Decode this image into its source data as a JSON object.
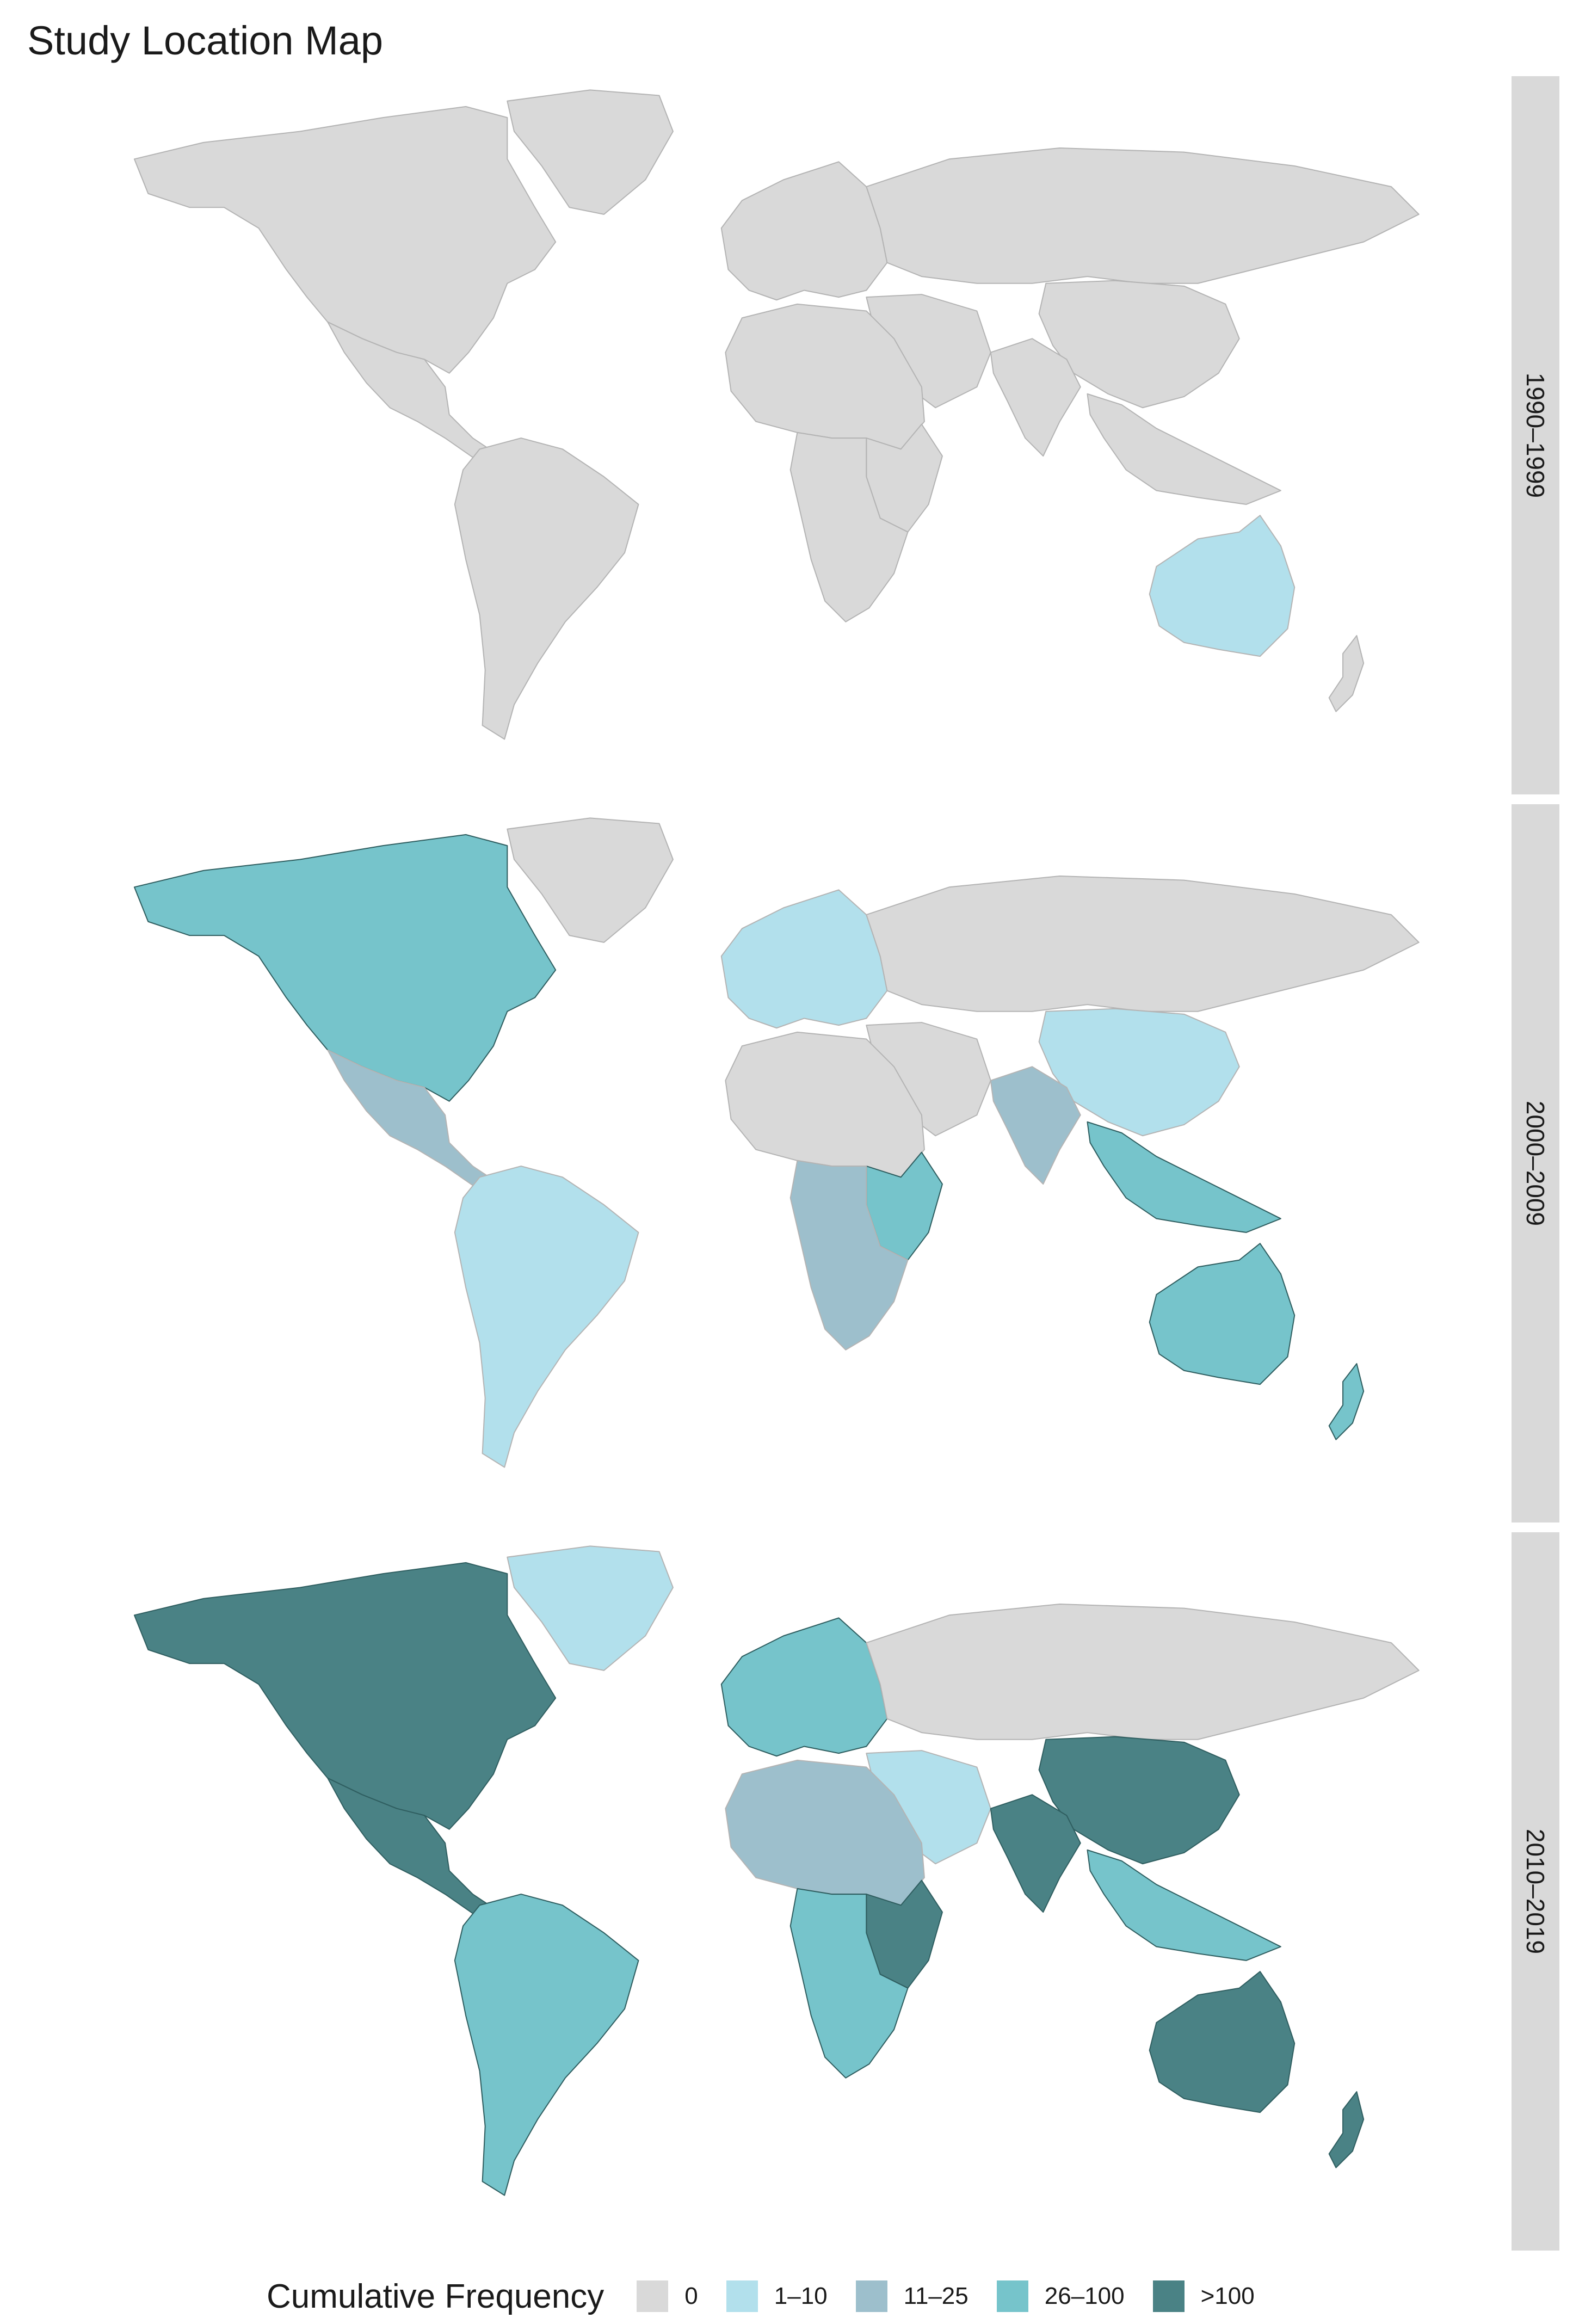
{
  "title": "Study Location Map",
  "legend": {
    "title": "Cumulative Frequency",
    "items": [
      {
        "label": "0",
        "color": "#d9d9d9"
      },
      {
        "label": "1–10",
        "color": "#b2e0ec"
      },
      {
        "label": "11–25",
        "color": "#9dbfcc"
      },
      {
        "label": "26–100",
        "color": "#76c4cb"
      },
      {
        "label": ">100",
        "color": "#4a8285"
      }
    ]
  },
  "panels": [
    {
      "label": "1990–1999",
      "regions": {
        "north-america": 0,
        "greenland": 0,
        "south-america": 0,
        "mexico": 0,
        "europe": 0,
        "africa": 0,
        "east-africa": 0,
        "southern-africa": 0,
        "russia": 0,
        "china": 0,
        "india": 0,
        "southeast-asia": 0,
        "australia": 1,
        "new-zealand": 0,
        "middle-east": 0
      }
    },
    {
      "label": "2000–2009",
      "regions": {
        "north-america": 3,
        "greenland": 0,
        "south-america": 1,
        "mexico": 2,
        "europe": 1,
        "africa": 0,
        "east-africa": 3,
        "southern-africa": 2,
        "russia": 0,
        "china": 1,
        "india": 2,
        "southeast-asia": 3,
        "australia": 3,
        "new-zealand": 3,
        "middle-east": 0
      }
    },
    {
      "label": "2010–2019",
      "regions": {
        "north-america": 4,
        "greenland": 1,
        "south-america": 3,
        "mexico": 4,
        "europe": 3,
        "africa": 2,
        "east-africa": 4,
        "southern-africa": 3,
        "russia": 0,
        "china": 4,
        "india": 4,
        "southeast-asia": 3,
        "australia": 4,
        "new-zealand": 4,
        "middle-east": 1
      }
    }
  ]
}
